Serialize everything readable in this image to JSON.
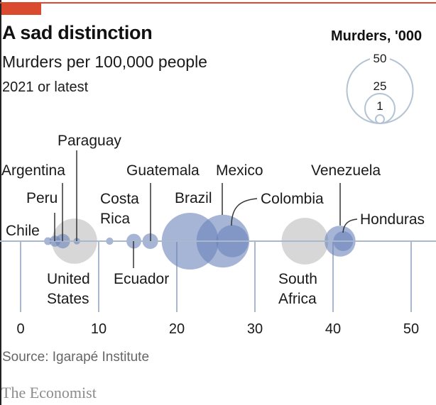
{
  "header": {
    "title": "A sad distinction",
    "subtitle": "Murders per 100,000 people",
    "note": "2021 or latest"
  },
  "legend": {
    "title": "Murders, '000",
    "sizes": [
      {
        "label": "50",
        "value": 50
      },
      {
        "label": "25",
        "value": 25
      },
      {
        "label": "1",
        "value": 1
      }
    ]
  },
  "footer": {
    "source": "Source: Igarapé Institute",
    "brand": "The Economist"
  },
  "colors": {
    "accent": "#d94a2e",
    "latin_america": "#6b84bb",
    "other": "#c9c9c9",
    "axis": "#a9b8cc"
  },
  "chart_data": {
    "type": "scatter",
    "title": "A sad distinction",
    "subtitle": "Murders per 100,000 people",
    "note": "2021 or latest",
    "xlabel": "Murders per 100,000 people",
    "xlim": [
      0,
      50
    ],
    "xticks": [
      0,
      10,
      20,
      30,
      40,
      50
    ],
    "size_legend": "Murders, '000",
    "points": [
      {
        "country": "Chile",
        "rate": 3.5,
        "murders_k": 0.7,
        "group": "latam",
        "label_lines": [
          "Chile"
        ],
        "label_side": "left"
      },
      {
        "country": "Peru",
        "rate": 4.4,
        "murders_k": 1.4,
        "group": "latam",
        "label_lines": [
          "Peru"
        ],
        "label_side": "above"
      },
      {
        "country": "Argentina",
        "rate": 5.4,
        "murders_k": 2.4,
        "group": "latam",
        "label_lines": [
          "Argentina"
        ],
        "label_side": "above"
      },
      {
        "country": "United States",
        "rate": 6.9,
        "murders_k": 23.5,
        "group": "other",
        "label_lines": [
          "United",
          "States"
        ],
        "label_side": "below"
      },
      {
        "country": "Paraguay",
        "rate": 7.2,
        "murders_k": 0.5,
        "group": "latam",
        "label_lines": [
          "Paraguay"
        ],
        "label_side": "above"
      },
      {
        "country": "Costa Rica",
        "rate": 11.4,
        "murders_k": 0.6,
        "group": "latam",
        "label_lines": [
          "Costa",
          "Rica"
        ],
        "label_side": "above"
      },
      {
        "country": "Ecuador",
        "rate": 14.5,
        "murders_k": 2.5,
        "group": "latam",
        "label_lines": [
          "Ecuador"
        ],
        "label_side": "below"
      },
      {
        "country": "Guatemala",
        "rate": 16.6,
        "murders_k": 2.8,
        "group": "latam",
        "label_lines": [
          "Guatemala"
        ],
        "label_side": "above"
      },
      {
        "country": "Brazil",
        "rate": 21.7,
        "murders_k": 37,
        "group": "latam",
        "label_lines": [
          "Brazil"
        ],
        "label_side": "above"
      },
      {
        "country": "Mexico",
        "rate": 25.9,
        "murders_k": 32,
        "group": "latam",
        "label_lines": [
          "Mexico"
        ],
        "label_side": "above"
      },
      {
        "country": "Colombia",
        "rate": 27.1,
        "murders_k": 12,
        "group": "latam",
        "label_lines": [
          "Colombia"
        ],
        "label_side": "above"
      },
      {
        "country": "South Africa",
        "rate": 36.4,
        "murders_k": 25,
        "group": "other",
        "label_lines": [
          "South",
          "Africa"
        ],
        "label_side": "below"
      },
      {
        "country": "Venezuela",
        "rate": 40.9,
        "murders_k": 11,
        "group": "latam",
        "label_lines": [
          "Venezuela"
        ],
        "label_side": "above"
      },
      {
        "country": "Honduras",
        "rate": 41.3,
        "murders_k": 4.5,
        "group": "latam",
        "label_lines": [
          "Honduras"
        ],
        "label_side": "right"
      }
    ]
  }
}
